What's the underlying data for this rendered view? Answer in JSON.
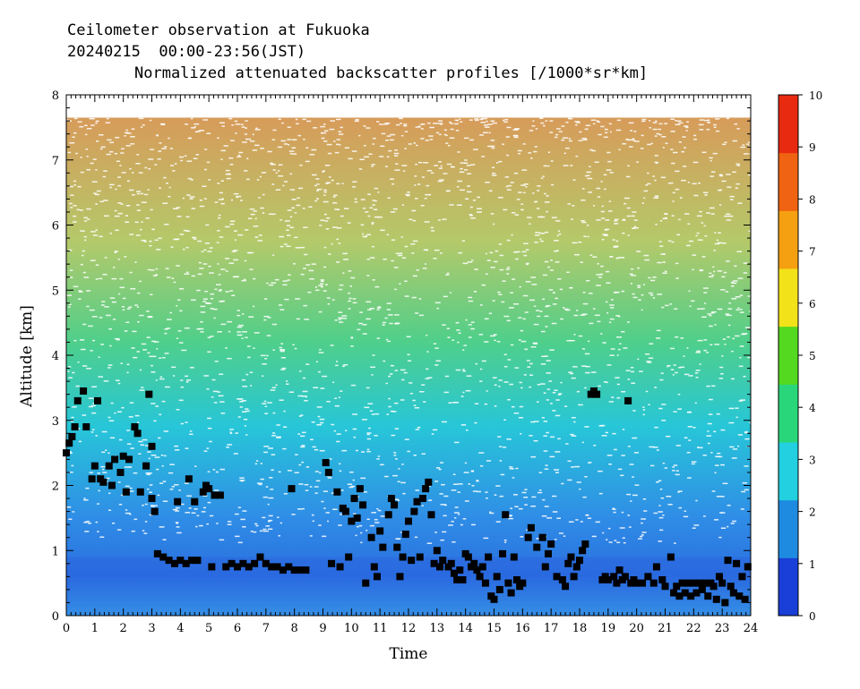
{
  "chart_data": {
    "type": "heatmap",
    "title_lines": [
      "Ceilometer observation at Fukuoka",
      "20240215  00:00-23:56(JST)"
    ],
    "subtitle": "Normalized attenuated backscatter profiles [/1000*sr*km]",
    "xlabel": "Time",
    "ylabel": "Altitude [km]",
    "xlim": [
      0,
      24
    ],
    "ylim": [
      0,
      8
    ],
    "x_ticks": [
      "0",
      "1",
      "2",
      "3",
      "4",
      "5",
      "6",
      "7",
      "8",
      "9",
      "10",
      "11",
      "12",
      "13",
      "14",
      "15",
      "16",
      "17",
      "18",
      "19",
      "20",
      "21",
      "22",
      "23",
      "24"
    ],
    "y_ticks": [
      "0",
      "1",
      "2",
      "3",
      "4",
      "5",
      "6",
      "7",
      "8"
    ],
    "colorbar": {
      "range": [
        0,
        10
      ],
      "ticks": [
        "0",
        "1",
        "2",
        "3",
        "4",
        "5",
        "6",
        "7",
        "8",
        "9",
        "10"
      ],
      "colors": [
        "#1a3fd8",
        "#1e8be0",
        "#22d0e0",
        "#2ad67a",
        "#55d820",
        "#f2e21a",
        "#f5a011",
        "#ef6312",
        "#e82a10"
      ]
    },
    "data_top_km": 7.65,
    "cloud_base_points": [
      [
        0.0,
        2.5
      ],
      [
        0.1,
        2.65
      ],
      [
        0.2,
        2.75
      ],
      [
        0.3,
        2.9
      ],
      [
        0.4,
        3.3
      ],
      [
        0.6,
        3.45
      ],
      [
        0.7,
        2.9
      ],
      [
        0.9,
        2.1
      ],
      [
        1.0,
        2.3
      ],
      [
        1.1,
        3.3
      ],
      [
        1.2,
        2.1
      ],
      [
        1.3,
        2.05
      ],
      [
        1.5,
        2.3
      ],
      [
        1.6,
        2.0
      ],
      [
        1.7,
        2.4
      ],
      [
        1.9,
        2.2
      ],
      [
        2.0,
        2.45
      ],
      [
        2.1,
        1.9
      ],
      [
        2.2,
        2.4
      ],
      [
        2.4,
        2.9
      ],
      [
        2.5,
        2.8
      ],
      [
        2.6,
        1.9
      ],
      [
        2.8,
        2.3
      ],
      [
        2.9,
        3.4
      ],
      [
        3.0,
        2.6
      ],
      [
        3.0,
        1.8
      ],
      [
        3.1,
        1.6
      ],
      [
        3.2,
        0.95
      ],
      [
        3.4,
        0.9
      ],
      [
        3.6,
        0.85
      ],
      [
        3.8,
        0.8
      ],
      [
        3.9,
        1.75
      ],
      [
        4.0,
        0.85
      ],
      [
        4.2,
        0.8
      ],
      [
        4.3,
        2.1
      ],
      [
        4.4,
        0.85
      ],
      [
        4.5,
        1.75
      ],
      [
        4.6,
        0.85
      ],
      [
        4.8,
        1.9
      ],
      [
        4.9,
        2.0
      ],
      [
        5.0,
        1.95
      ],
      [
        5.1,
        0.75
      ],
      [
        5.2,
        1.85
      ],
      [
        5.4,
        1.85
      ],
      [
        5.6,
        0.75
      ],
      [
        5.8,
        0.8
      ],
      [
        6.0,
        0.75
      ],
      [
        6.2,
        0.8
      ],
      [
        6.4,
        0.75
      ],
      [
        6.6,
        0.8
      ],
      [
        6.8,
        0.9
      ],
      [
        7.0,
        0.8
      ],
      [
        7.2,
        0.75
      ],
      [
        7.4,
        0.75
      ],
      [
        7.6,
        0.7
      ],
      [
        7.8,
        0.75
      ],
      [
        8.0,
        0.7
      ],
      [
        8.2,
        0.7
      ],
      [
        8.4,
        0.7
      ],
      [
        7.9,
        1.95
      ],
      [
        9.1,
        2.35
      ],
      [
        9.2,
        2.2
      ],
      [
        9.3,
        0.8
      ],
      [
        9.5,
        1.9
      ],
      [
        9.6,
        0.75
      ],
      [
        9.7,
        1.65
      ],
      [
        9.8,
        1.6
      ],
      [
        9.9,
        0.9
      ],
      [
        10.0,
        1.45
      ],
      [
        10.1,
        1.8
      ],
      [
        10.2,
        1.5
      ],
      [
        10.3,
        1.95
      ],
      [
        10.4,
        1.7
      ],
      [
        10.5,
        0.5
      ],
      [
        10.7,
        1.2
      ],
      [
        10.8,
        0.75
      ],
      [
        10.9,
        0.6
      ],
      [
        11.0,
        1.3
      ],
      [
        11.1,
        1.05
      ],
      [
        11.3,
        1.55
      ],
      [
        11.4,
        1.8
      ],
      [
        11.5,
        1.7
      ],
      [
        11.6,
        1.05
      ],
      [
        11.7,
        0.6
      ],
      [
        11.8,
        0.9
      ],
      [
        11.9,
        1.25
      ],
      [
        12.0,
        1.45
      ],
      [
        12.1,
        0.85
      ],
      [
        12.2,
        1.6
      ],
      [
        12.3,
        1.75
      ],
      [
        12.4,
        0.9
      ],
      [
        12.5,
        1.8
      ],
      [
        12.6,
        1.95
      ],
      [
        12.7,
        2.05
      ],
      [
        12.8,
        1.55
      ],
      [
        12.9,
        0.8
      ],
      [
        13.0,
        1.0
      ],
      [
        13.1,
        0.75
      ],
      [
        13.2,
        0.85
      ],
      [
        13.4,
        0.75
      ],
      [
        13.5,
        0.8
      ],
      [
        13.6,
        0.65
      ],
      [
        13.7,
        0.55
      ],
      [
        13.8,
        0.7
      ],
      [
        13.9,
        0.55
      ],
      [
        14.0,
        0.95
      ],
      [
        14.1,
        0.9
      ],
      [
        14.2,
        0.75
      ],
      [
        14.3,
        0.8
      ],
      [
        14.4,
        0.7
      ],
      [
        14.5,
        0.6
      ],
      [
        14.6,
        0.75
      ],
      [
        14.7,
        0.5
      ],
      [
        14.8,
        0.9
      ],
      [
        14.9,
        0.3
      ],
      [
        15.0,
        0.25
      ],
      [
        15.1,
        0.6
      ],
      [
        15.2,
        0.4
      ],
      [
        15.3,
        0.95
      ],
      [
        15.4,
        1.55
      ],
      [
        15.5,
        0.5
      ],
      [
        15.6,
        0.35
      ],
      [
        15.7,
        0.9
      ],
      [
        15.8,
        0.55
      ],
      [
        15.9,
        0.45
      ],
      [
        16.0,
        0.5
      ],
      [
        16.2,
        1.2
      ],
      [
        16.3,
        1.35
      ],
      [
        16.5,
        1.05
      ],
      [
        16.7,
        1.2
      ],
      [
        16.8,
        0.75
      ],
      [
        16.9,
        0.95
      ],
      [
        17.0,
        1.1
      ],
      [
        17.2,
        0.6
      ],
      [
        17.4,
        0.55
      ],
      [
        17.5,
        0.45
      ],
      [
        17.6,
        0.8
      ],
      [
        17.7,
        0.9
      ],
      [
        17.8,
        0.6
      ],
      [
        17.9,
        0.75
      ],
      [
        18.0,
        0.85
      ],
      [
        18.1,
        1.0
      ],
      [
        18.2,
        1.1
      ],
      [
        18.4,
        3.4
      ],
      [
        18.5,
        3.45
      ],
      [
        18.6,
        3.4
      ],
      [
        18.8,
        0.55
      ],
      [
        18.9,
        0.6
      ],
      [
        19.0,
        0.55
      ],
      [
        19.2,
        0.6
      ],
      [
        19.3,
        0.5
      ],
      [
        19.4,
        0.7
      ],
      [
        19.5,
        0.55
      ],
      [
        19.6,
        0.6
      ],
      [
        19.7,
        3.3
      ],
      [
        19.8,
        0.5
      ],
      [
        19.9,
        0.55
      ],
      [
        20.0,
        0.5
      ],
      [
        20.2,
        0.5
      ],
      [
        20.4,
        0.6
      ],
      [
        20.6,
        0.5
      ],
      [
        20.7,
        0.75
      ],
      [
        20.9,
        0.55
      ],
      [
        21.0,
        0.45
      ],
      [
        21.2,
        0.9
      ],
      [
        21.3,
        0.35
      ],
      [
        21.4,
        0.45
      ],
      [
        21.5,
        0.3
      ],
      [
        21.6,
        0.5
      ],
      [
        21.7,
        0.35
      ],
      [
        21.8,
        0.5
      ],
      [
        21.9,
        0.3
      ],
      [
        22.0,
        0.5
      ],
      [
        22.1,
        0.35
      ],
      [
        22.2,
        0.5
      ],
      [
        22.3,
        0.4
      ],
      [
        22.4,
        0.5
      ],
      [
        22.5,
        0.3
      ],
      [
        22.6,
        0.5
      ],
      [
        22.7,
        0.45
      ],
      [
        22.8,
        0.25
      ],
      [
        22.9,
        0.6
      ],
      [
        23.0,
        0.5
      ],
      [
        23.1,
        0.2
      ],
      [
        23.2,
        0.85
      ],
      [
        23.3,
        0.45
      ],
      [
        23.4,
        0.35
      ],
      [
        23.5,
        0.8
      ],
      [
        23.6,
        0.3
      ],
      [
        23.7,
        0.6
      ],
      [
        23.8,
        0.25
      ],
      [
        23.9,
        0.75
      ]
    ]
  }
}
